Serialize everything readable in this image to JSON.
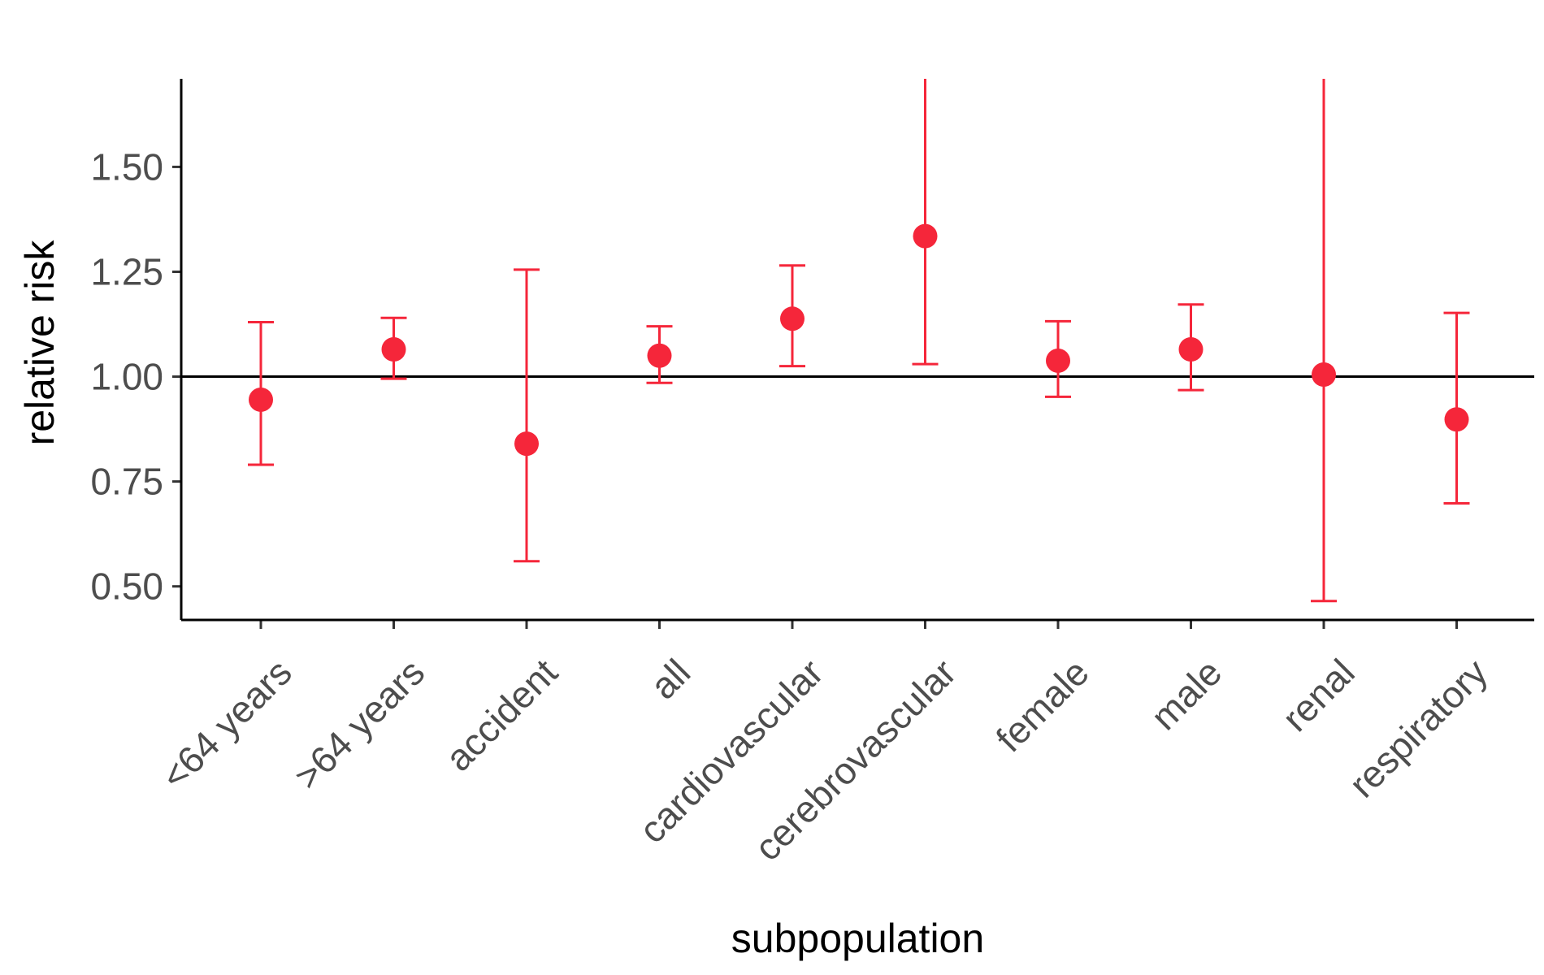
{
  "chart_data": {
    "type": "scatter",
    "xlabel": "subpopulation",
    "ylabel": "relative risk",
    "ylim": [
      0.42,
      1.71
    ],
    "yticks": [
      "0.50",
      "0.75",
      "1.00",
      "1.25",
      "1.50"
    ],
    "reference_line": 1.0,
    "grid": false,
    "legend": "none",
    "color": "#f5263a",
    "categories": [
      "<64 years",
      ">64 years",
      "accident",
      "all",
      "cardiovascular",
      "cerebrovascular",
      "female",
      "male",
      "renal",
      "respiratory"
    ],
    "estimate": [
      0.945,
      1.065,
      0.84,
      1.05,
      1.138,
      1.335,
      1.038,
      1.065,
      1.005,
      0.898
    ],
    "lower": [
      0.79,
      0.995,
      0.56,
      0.985,
      1.025,
      1.03,
      0.952,
      0.968,
      0.465,
      0.698
    ],
    "upper": [
      1.13,
      1.14,
      1.255,
      1.12,
      1.265,
      1.71,
      1.132,
      1.172,
      1.71,
      1.152
    ]
  }
}
